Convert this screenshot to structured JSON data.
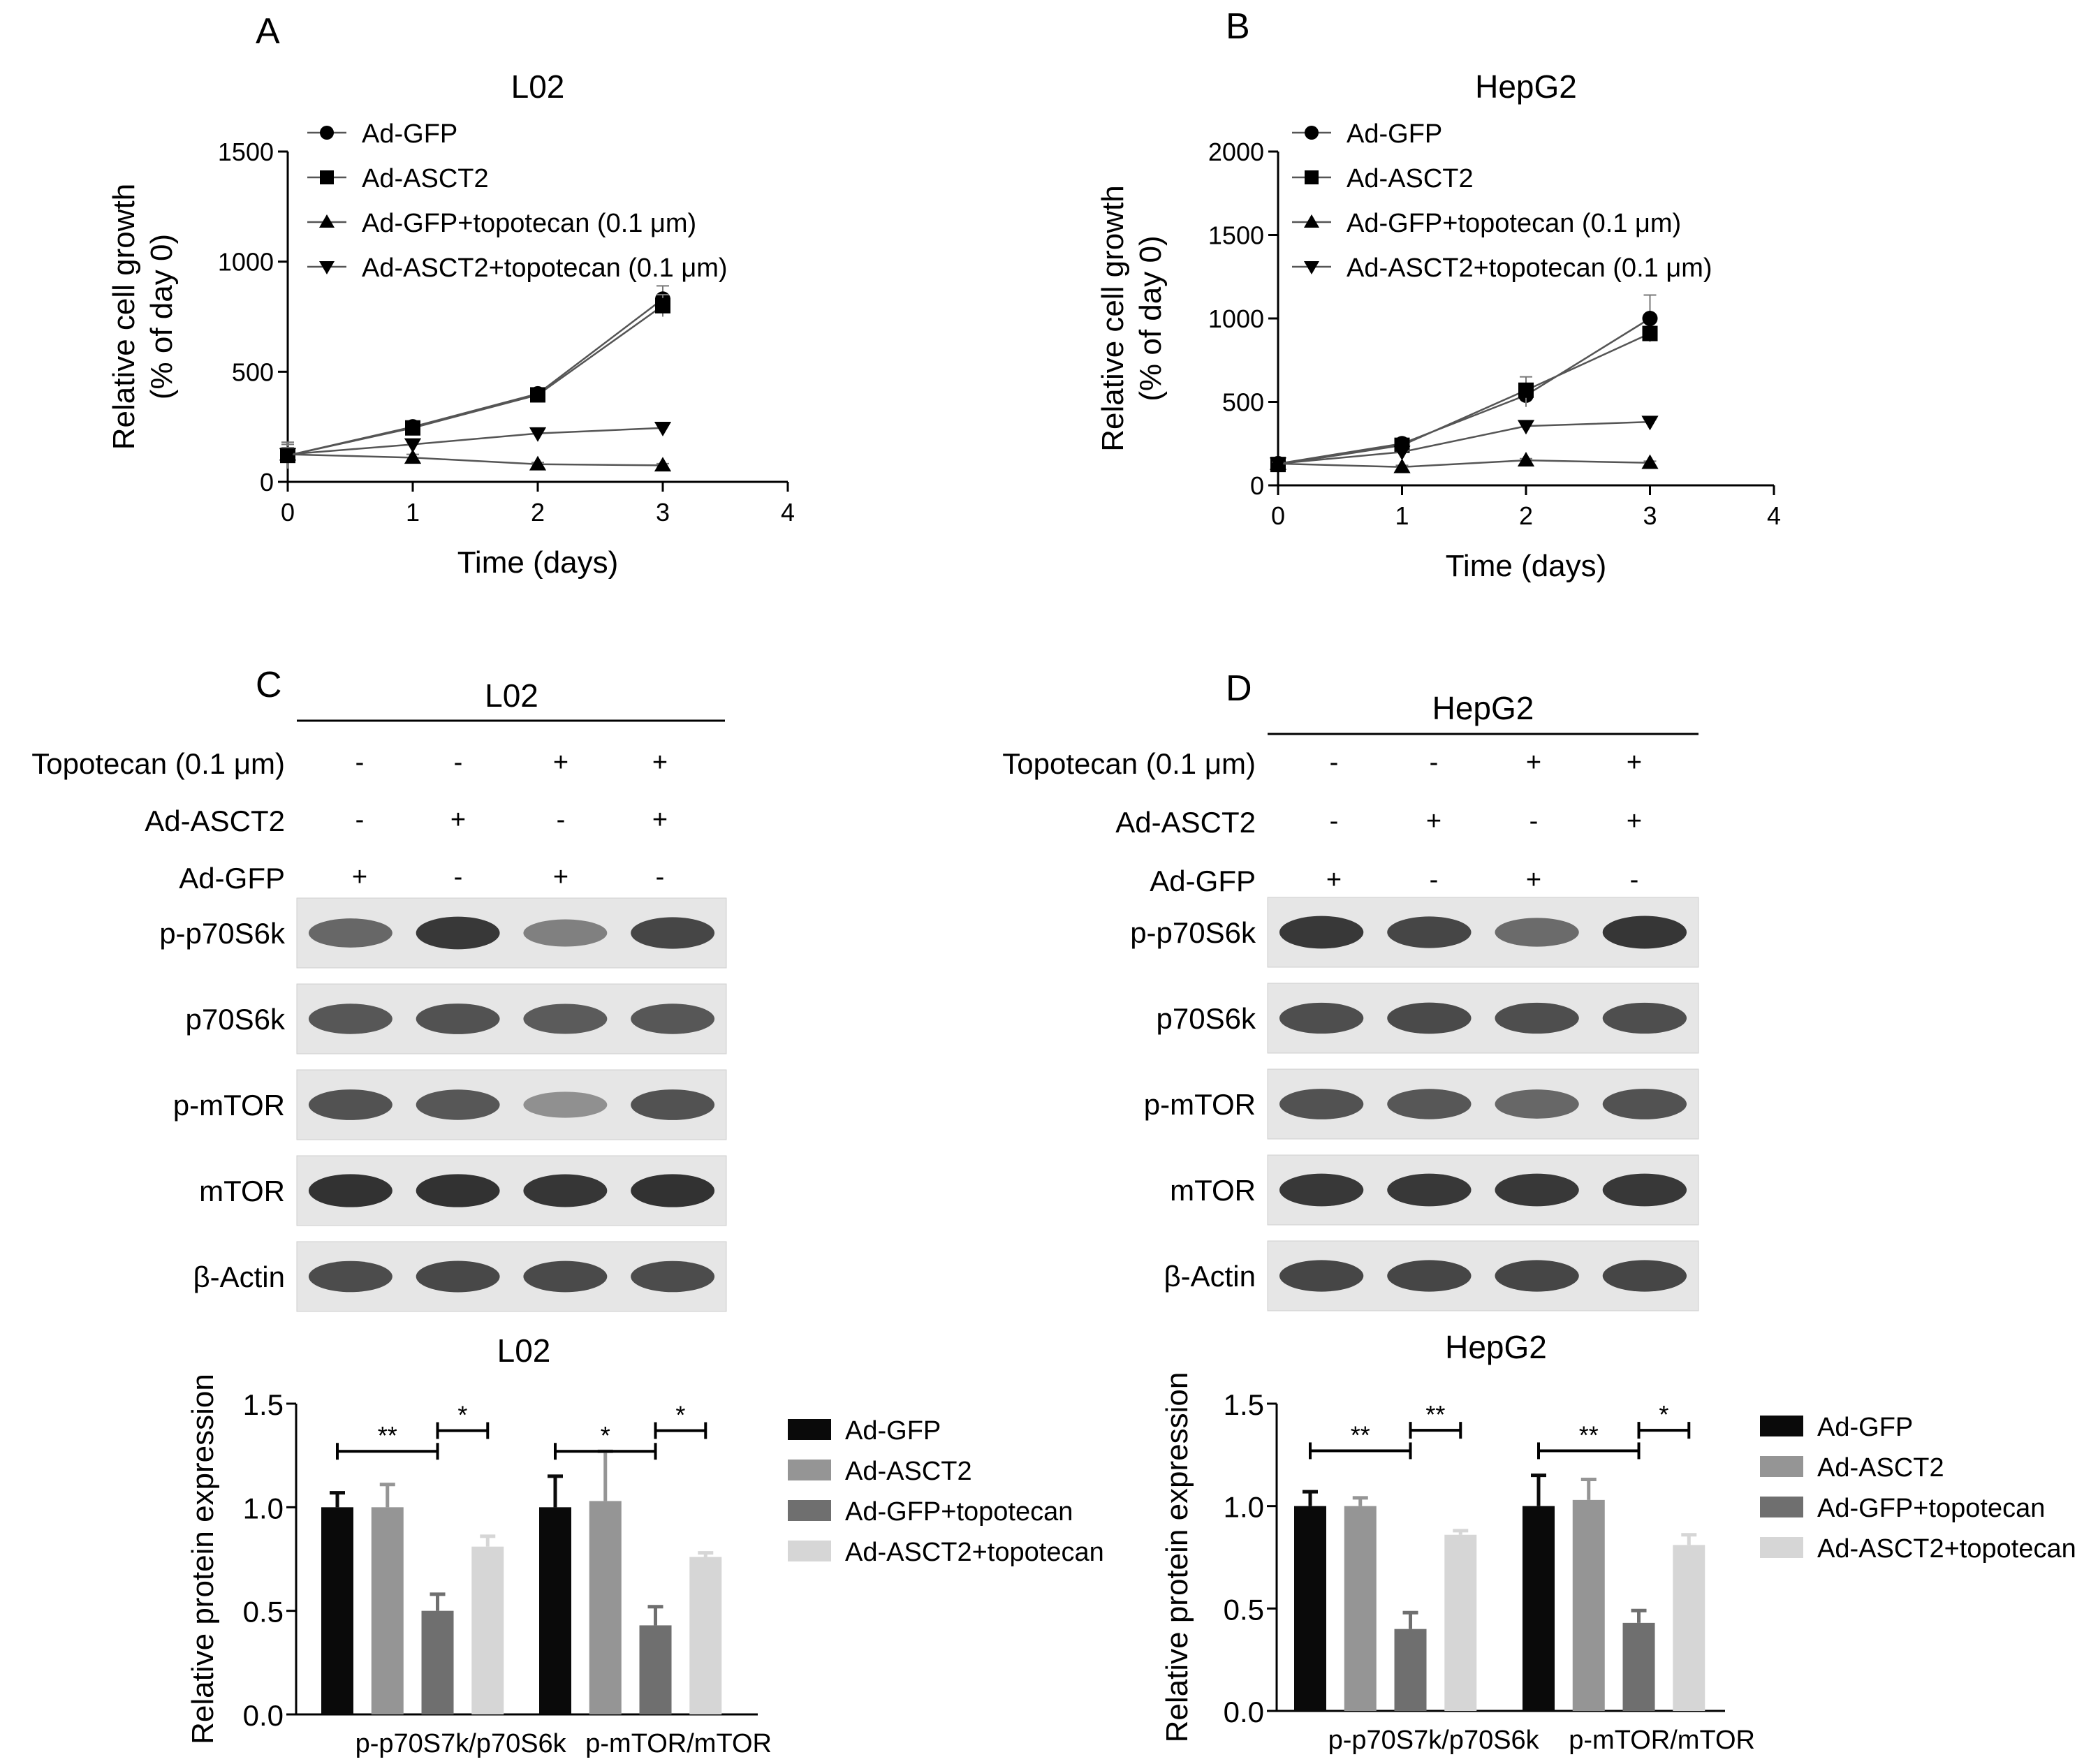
{
  "panels": {
    "A": "A",
    "B": "B",
    "C": "C",
    "D": "D"
  },
  "line_legend": [
    "Ad-GFP",
    "Ad-ASCT2",
    "Ad-GFP+topotecan (0.1 μm)",
    "Ad-ASCT2+topotecan (0.1 μm)"
  ],
  "bar_legend": [
    "Ad-GFP",
    "Ad-ASCT2",
    "Ad-GFP+topotecan",
    "Ad-ASCT2+topotecan"
  ],
  "colors": {
    "bar_series": [
      "#0a0a0a",
      "#959595",
      "#6f6f6f",
      "#d6d6d6"
    ],
    "axis": "#000000",
    "line": "#555555"
  },
  "blots": {
    "C": {
      "cell_line": "L02",
      "treatments": [
        {
          "label": "Topotecan (0.1 μm)",
          "signs": [
            "-",
            "-",
            "+",
            "+"
          ]
        },
        {
          "label": "Ad-ASCT2",
          "signs": [
            "-",
            "+",
            "-",
            "+"
          ]
        },
        {
          "label": "Ad-GFP",
          "signs": [
            "+",
            "-",
            "+",
            "-"
          ]
        }
      ],
      "proteins": [
        "p-p70S6k",
        "p70S6k",
        "p-mTOR",
        "mTOR",
        "β-Actin"
      ],
      "band_intensity": [
        [
          0.62,
          0.85,
          0.5,
          0.78
        ],
        [
          0.7,
          0.72,
          0.68,
          0.7
        ],
        [
          0.72,
          0.7,
          0.42,
          0.72
        ],
        [
          0.88,
          0.88,
          0.86,
          0.88
        ],
        [
          0.75,
          0.77,
          0.76,
          0.75
        ]
      ]
    },
    "D": {
      "cell_line": "HepG2",
      "treatments": [
        {
          "label": "Topotecan (0.1 μm)",
          "signs": [
            "-",
            "-",
            "+",
            "+"
          ]
        },
        {
          "label": "Ad-ASCT2",
          "signs": [
            "-",
            "+",
            "-",
            "+"
          ]
        },
        {
          "label": "Ad-GFP",
          "signs": [
            "+",
            "-",
            "+",
            "-"
          ]
        }
      ],
      "proteins": [
        "p-p70S6k",
        "p70S6k",
        "p-mTOR",
        "mTOR",
        "β-Actin"
      ],
      "band_intensity": [
        [
          0.85,
          0.78,
          0.6,
          0.86
        ],
        [
          0.74,
          0.76,
          0.74,
          0.74
        ],
        [
          0.72,
          0.7,
          0.62,
          0.72
        ],
        [
          0.85,
          0.85,
          0.85,
          0.85
        ],
        [
          0.78,
          0.78,
          0.78,
          0.78
        ]
      ]
    }
  },
  "chart_data": [
    {
      "id": "A",
      "type": "line",
      "title": "L02",
      "xlabel": "Time (days)",
      "ylabel": [
        "Relative cell growth",
        "(% of day 0)"
      ],
      "xlim": [
        0,
        4
      ],
      "ylim": [
        0,
        1500
      ],
      "xticks": [
        0,
        1,
        2,
        3,
        4
      ],
      "yticks": [
        0,
        500,
        1000,
        1500
      ],
      "legend_position": "top-left",
      "x": [
        0,
        1,
        2,
        3
      ],
      "series": [
        {
          "name": "Ad-GFP",
          "marker": "circle",
          "values": [
            120,
            250,
            400,
            830
          ],
          "err": [
            60,
            20,
            15,
            60
          ]
        },
        {
          "name": "Ad-ASCT2",
          "marker": "square",
          "values": [
            120,
            245,
            395,
            800
          ],
          "err": [
            50,
            20,
            15,
            50
          ]
        },
        {
          "name": "Ad-GFP+topotecan (0.1 μm)",
          "marker": "triangle-up",
          "values": [
            125,
            110,
            80,
            75
          ],
          "err": [
            30,
            15,
            8,
            8
          ]
        },
        {
          "name": "Ad-ASCT2+topotecan (0.1 μm)",
          "marker": "triangle-down",
          "values": [
            125,
            170,
            220,
            245
          ],
          "err": [
            30,
            15,
            12,
            12
          ]
        }
      ]
    },
    {
      "id": "B",
      "type": "line",
      "title": "HepG2",
      "xlabel": "Time (days)",
      "ylabel": [
        "Relative cell growth",
        "(% of day 0)"
      ],
      "xlim": [
        0,
        4
      ],
      "ylim": [
        0,
        2000
      ],
      "xticks": [
        0,
        1,
        2,
        3,
        4
      ],
      "yticks": [
        0,
        500,
        1000,
        1500,
        2000
      ],
      "legend_position": "top-left",
      "x": [
        0,
        1,
        2,
        3
      ],
      "series": [
        {
          "name": "Ad-GFP",
          "marker": "circle",
          "values": [
            130,
            250,
            540,
            1000
          ],
          "err": [
            20,
            25,
            70,
            140
          ]
        },
        {
          "name": "Ad-ASCT2",
          "marker": "square",
          "values": [
            125,
            240,
            570,
            910
          ],
          "err": [
            20,
            25,
            80,
            30
          ]
        },
        {
          "name": "Ad-GFP+topotecan (0.1 μm)",
          "marker": "triangle-up",
          "values": [
            130,
            110,
            150,
            135
          ],
          "err": [
            10,
            10,
            10,
            10
          ]
        },
        {
          "name": "Ad-ASCT2+topotecan (0.1 μm)",
          "marker": "triangle-down",
          "values": [
            130,
            200,
            355,
            380
          ],
          "err": [
            10,
            15,
            15,
            15
          ]
        }
      ]
    },
    {
      "id": "C-bar",
      "type": "bar",
      "title": "L02",
      "ylabel": "Relative protein expression",
      "ylim": [
        0,
        1.5
      ],
      "yticks": [
        0.0,
        0.5,
        1.0,
        1.5
      ],
      "ytick_labels": [
        "0.0",
        "0.5",
        "1.0",
        "1.5"
      ],
      "categories": [
        "p-p70S7k/p70S6k",
        "p-mTOR/mTOR"
      ],
      "legend_position": "right",
      "series": [
        {
          "name": "Ad-GFP",
          "values": [
            1.0,
            1.0
          ],
          "err": [
            0.07,
            0.15
          ]
        },
        {
          "name": "Ad-ASCT2",
          "values": [
            1.0,
            1.03
          ],
          "err": [
            0.11,
            0.24
          ]
        },
        {
          "name": "Ad-GFP+topotecan",
          "values": [
            0.5,
            0.43
          ],
          "err": [
            0.08,
            0.09
          ]
        },
        {
          "name": "Ad-ASCT2+topotecan",
          "values": [
            0.81,
            0.76
          ],
          "err": [
            0.05,
            0.02
          ]
        }
      ],
      "significance": [
        {
          "group": 0,
          "from": 0,
          "to": 2,
          "label": "**",
          "level": 0
        },
        {
          "group": 0,
          "from": 2,
          "to": 3,
          "label": "*",
          "level": 1
        },
        {
          "group": 1,
          "from": 0,
          "to": 2,
          "label": "*",
          "level": 0
        },
        {
          "group": 1,
          "from": 2,
          "to": 3,
          "label": "*",
          "level": 1
        }
      ]
    },
    {
      "id": "D-bar",
      "type": "bar",
      "title": "HepG2",
      "ylabel": "Relative protein expression",
      "ylim": [
        0,
        1.5
      ],
      "yticks": [
        0.0,
        0.5,
        1.0,
        1.5
      ],
      "ytick_labels": [
        "0.0",
        "0.5",
        "1.0",
        "1.5"
      ],
      "categories": [
        "p-p70S7k/p70S6k",
        "p-mTOR/mTOR"
      ],
      "legend_position": "right",
      "series": [
        {
          "name": "Ad-GFP",
          "values": [
            1.0,
            1.0
          ],
          "err": [
            0.07,
            0.15
          ]
        },
        {
          "name": "Ad-ASCT2",
          "values": [
            1.0,
            1.03
          ],
          "err": [
            0.04,
            0.1
          ]
        },
        {
          "name": "Ad-GFP+topotecan",
          "values": [
            0.4,
            0.43
          ],
          "err": [
            0.08,
            0.06
          ]
        },
        {
          "name": "Ad-ASCT2+topotecan",
          "values": [
            0.86,
            0.81
          ],
          "err": [
            0.02,
            0.05
          ]
        }
      ],
      "significance": [
        {
          "group": 0,
          "from": 0,
          "to": 2,
          "label": "**",
          "level": 0
        },
        {
          "group": 0,
          "from": 2,
          "to": 3,
          "label": "**",
          "level": 1
        },
        {
          "group": 1,
          "from": 0,
          "to": 2,
          "label": "**",
          "level": 0
        },
        {
          "group": 1,
          "from": 2,
          "to": 3,
          "label": "*",
          "level": 1
        }
      ]
    }
  ]
}
